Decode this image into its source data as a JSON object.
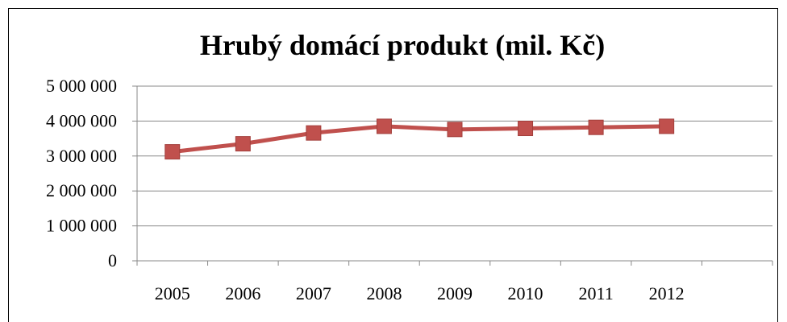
{
  "chart_data": {
    "type": "line",
    "title": "Hrubý domácí produkt (mil. Kč)",
    "xlabel": "",
    "ylabel": "",
    "categories": [
      "2005",
      "2006",
      "2007",
      "2008",
      "2009",
      "2010",
      "2011",
      "2012"
    ],
    "series": [
      {
        "values": [
          3120000,
          3350000,
          3660000,
          3850000,
          3760000,
          3790000,
          3820000,
          3850000
        ],
        "color": "#c0504d",
        "marker": "square"
      }
    ],
    "ylim": [
      0,
      5000000
    ],
    "yticks": [
      0,
      1000000,
      2000000,
      3000000,
      4000000,
      5000000
    ],
    "ytick_labels": [
      "0",
      "1 000 000",
      "2 000 000",
      "3 000 000",
      "4 000 000",
      "5 000 000"
    ],
    "grid": true,
    "legend": "none"
  }
}
